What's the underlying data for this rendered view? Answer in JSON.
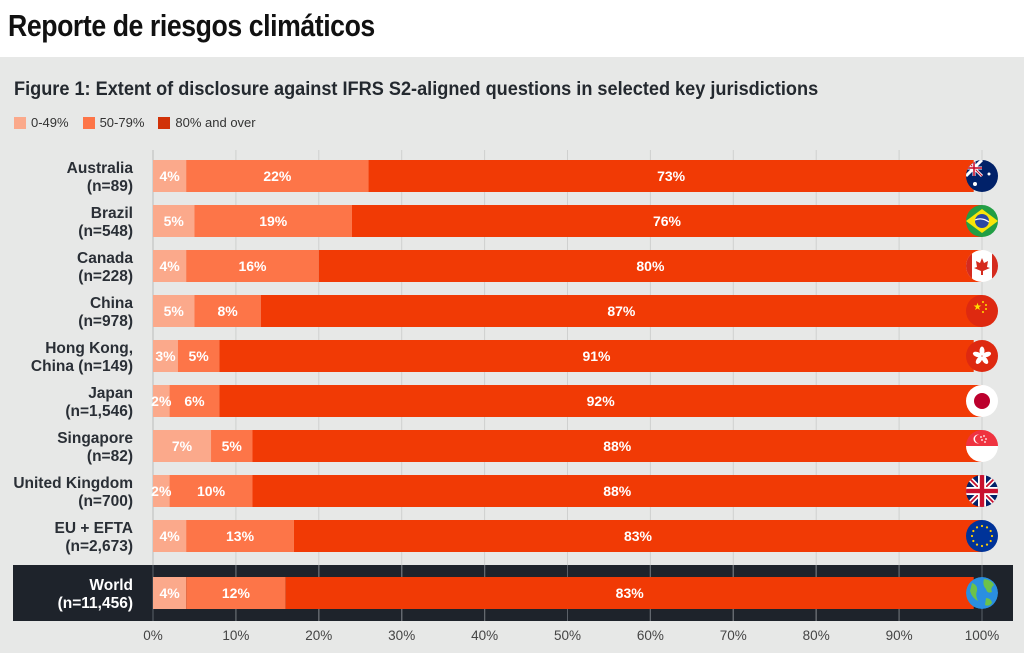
{
  "page": {
    "title": "Reporte de riesgos climáticos"
  },
  "colors": {
    "panel_bg": "#e7e8e7",
    "world_bg": "#1e232b",
    "low": "#fba98b",
    "mid": "#fd7548",
    "high": "#f13a05",
    "grid": "#cfd0cf"
  },
  "chart_data": {
    "type": "bar",
    "orientation": "horizontal",
    "stacked": true,
    "title": "Figure 1: Extent of disclosure against IFRS S2-aligned questions in selected key jurisdictions",
    "xlabel": "",
    "ylabel": "",
    "xlim": [
      0,
      100
    ],
    "x_ticks": [
      "0%",
      "10%",
      "20%",
      "30%",
      "40%",
      "50%",
      "60%",
      "70%",
      "80%",
      "90%",
      "100%"
    ],
    "grid": true,
    "legend_position": "top-left",
    "legend": [
      {
        "name": "0-49%",
        "color_key": "low"
      },
      {
        "name": "50-79%",
        "color_key": "mid"
      },
      {
        "name": "80% and over",
        "color_key": "high"
      }
    ],
    "categories": [
      {
        "line1": "Australia",
        "line2": "(n=89)",
        "flag": "australia-flag-icon"
      },
      {
        "line1": "Brazil",
        "line2": "(n=548)",
        "flag": "brazil-flag-icon"
      },
      {
        "line1": "Canada",
        "line2": "(n=228)",
        "flag": "canada-flag-icon"
      },
      {
        "line1": "China",
        "line2": "(n=978)",
        "flag": "china-flag-icon"
      },
      {
        "line1": "Hong Kong,",
        "line2": "China (n=149)",
        "flag": "hong-kong-flag-icon"
      },
      {
        "line1": "Japan",
        "line2": "(n=1,546)",
        "flag": "japan-flag-icon"
      },
      {
        "line1": "Singapore",
        "line2": "(n=82)",
        "flag": "singapore-flag-icon"
      },
      {
        "line1": "United Kingdom",
        "line2": "(n=700)",
        "flag": "uk-flag-icon"
      },
      {
        "line1": "EU + EFTA",
        "line2": "(n=2,673)",
        "flag": "eu-flag-icon"
      },
      {
        "line1": "World",
        "line2": "(n=11,456)",
        "flag": "globe-icon",
        "highlight": true
      }
    ],
    "series": [
      {
        "name": "0-49%",
        "values": [
          4,
          5,
          4,
          5,
          3,
          2,
          7,
          2,
          4,
          4
        ],
        "labels": [
          "4%",
          "5%",
          "4%",
          "5%",
          "3%",
          "2%",
          "7%",
          "2%",
          "4%",
          "4%"
        ]
      },
      {
        "name": "50-79%",
        "values": [
          22,
          19,
          16,
          8,
          5,
          6,
          5,
          10,
          13,
          12
        ],
        "labels": [
          "22%",
          "19%",
          "16%",
          "8%",
          "5%",
          "6%",
          "5%",
          "10%",
          "13%",
          "12%"
        ]
      },
      {
        "name": "80% and over",
        "values": [
          73,
          76,
          80,
          87,
          91,
          92,
          88,
          88,
          83,
          83
        ],
        "labels": [
          "73%",
          "76%",
          "80%",
          "87%",
          "91%",
          "92%",
          "88%",
          "88%",
          "83%",
          "83%"
        ]
      }
    ]
  }
}
